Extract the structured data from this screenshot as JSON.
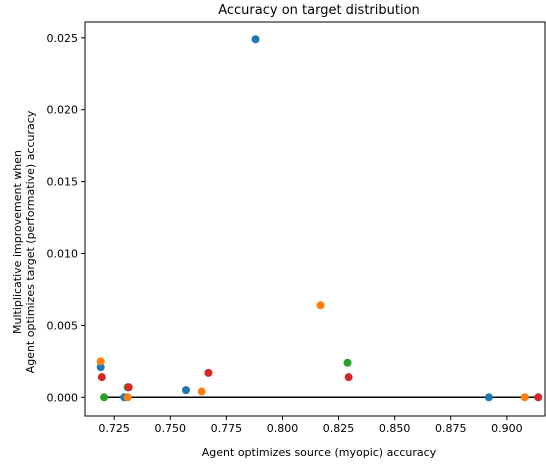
{
  "chart_data": {
    "type": "scatter",
    "title": "Accuracy on target distribution",
    "xlabel": "Agent optimizes source (myopic) accuracy",
    "ylabel_lines": [
      "Multiplicative improvement when",
      "Agent optimizes target (performative) accuracy"
    ],
    "xlim": [
      0.712,
      0.917
    ],
    "ylim": [
      -0.0013,
      0.0261
    ],
    "xticks": [
      {
        "value": 0.725,
        "label": "0.725"
      },
      {
        "value": 0.75,
        "label": "0.750"
      },
      {
        "value": 0.775,
        "label": "0.775"
      },
      {
        "value": 0.8,
        "label": "0.800"
      },
      {
        "value": 0.825,
        "label": "0.825"
      },
      {
        "value": 0.85,
        "label": "0.850"
      },
      {
        "value": 0.875,
        "label": "0.875"
      },
      {
        "value": 0.9,
        "label": "0.900"
      }
    ],
    "yticks": [
      {
        "value": 0.0,
        "label": "0.000"
      },
      {
        "value": 0.005,
        "label": "0.005"
      },
      {
        "value": 0.01,
        "label": "0.010"
      },
      {
        "value": 0.015,
        "label": "0.015"
      },
      {
        "value": 0.02,
        "label": "0.020"
      },
      {
        "value": 0.025,
        "label": "0.025"
      }
    ],
    "grid": false,
    "reference_line": {
      "y": 0.0,
      "x_from": 0.719,
      "x_to": 0.913,
      "color": "#000000"
    },
    "series": [
      {
        "color": "#1f77b4",
        "points": [
          [
            0.719,
            0.0021
          ],
          [
            0.7295,
            0.0
          ],
          [
            0.757,
            0.0005
          ],
          [
            0.788,
            0.0249
          ],
          [
            0.892,
            0.0
          ]
        ]
      },
      {
        "color": "#ff7f0e",
        "points": [
          [
            0.719,
            0.0025
          ],
          [
            0.731,
            0.0
          ],
          [
            0.764,
            0.0004
          ],
          [
            0.817,
            0.0064
          ],
          [
            0.908,
            0.0
          ]
        ]
      },
      {
        "color": "#2ca02c",
        "points": [
          [
            0.7205,
            0.0
          ],
          [
            0.731,
            0.0007
          ],
          [
            0.829,
            0.0024
          ]
        ]
      },
      {
        "color": "#d62728",
        "points": [
          [
            0.7195,
            0.0014
          ],
          [
            0.7315,
            0.0007
          ],
          [
            0.767,
            0.0017
          ],
          [
            0.8295,
            0.0014
          ],
          [
            0.914,
            0.0
          ]
        ]
      }
    ]
  }
}
